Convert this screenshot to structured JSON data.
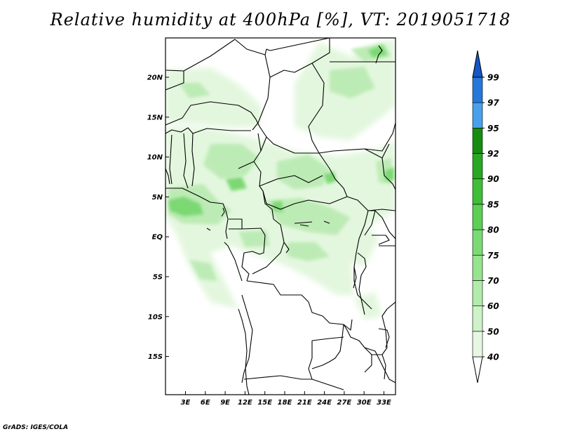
{
  "title": "Relative humidity at 400hPa [%], VT: 2019051718",
  "credit": "GrADS: IGES/COLA",
  "map": {
    "lat_labels": [
      "20N",
      "15N",
      "10N",
      "5N",
      "EQ",
      "5S",
      "10S",
      "15S"
    ],
    "lon_labels": [
      "3E",
      "6E",
      "9E",
      "12E",
      "15E",
      "18E",
      "21E",
      "24E",
      "27E",
      "30E",
      "33E"
    ]
  },
  "colorbar": {
    "labels": [
      "40",
      "50",
      "60",
      "70",
      "75",
      "80",
      "85",
      "90",
      "92",
      "95",
      "97",
      "99"
    ],
    "colors": [
      "#ffffff",
      "#e6f8e1",
      "#cdf2c7",
      "#b2ecaa",
      "#96e48e",
      "#7adb72",
      "#5ccf55",
      "#3fbe38",
      "#27a722",
      "#168d11",
      "#48a0ec",
      "#2677dc",
      "#1457c4"
    ]
  }
}
